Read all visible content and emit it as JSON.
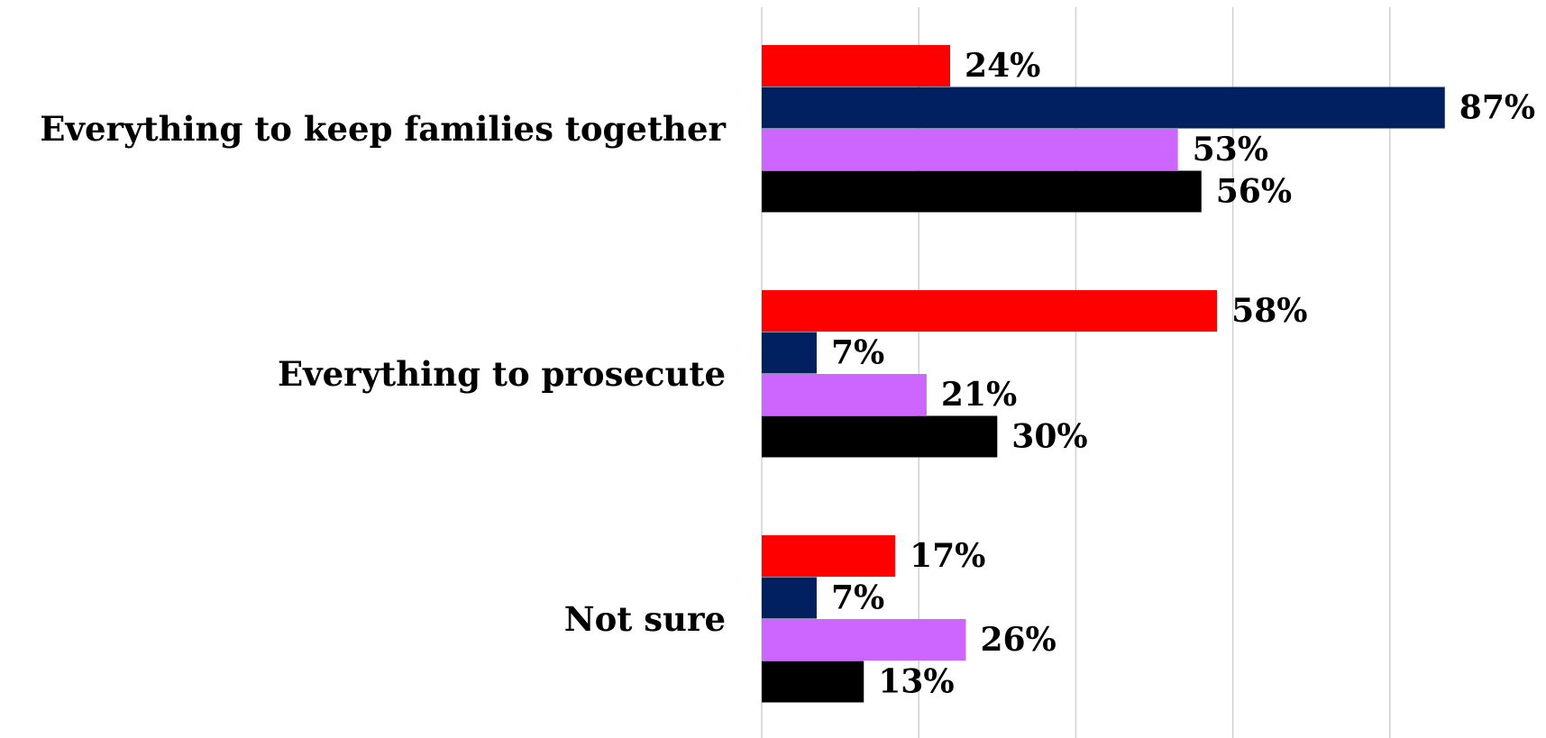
{
  "chart_data": {
    "type": "bar",
    "orientation": "horizontal",
    "categories": [
      "Everything to keep families together",
      "Everything to prosecute",
      "Not sure"
    ],
    "series": [
      {
        "color": "#ff0000",
        "values": [
          24,
          58,
          17
        ],
        "labels": [
          "24%",
          "58%",
          "17%"
        ]
      },
      {
        "color": "#002060",
        "values": [
          87,
          7,
          7
        ],
        "labels": [
          "87%",
          "7%",
          "7%"
        ]
      },
      {
        "color": "#cc66ff",
        "values": [
          53,
          21,
          26
        ],
        "labels": [
          "53%",
          "21%",
          "26%"
        ]
      },
      {
        "color": "#000000",
        "values": [
          56,
          30,
          13
        ],
        "labels": [
          "56%",
          "30%",
          "13%"
        ]
      }
    ],
    "xlim": [
      0,
      100
    ],
    "grid": true,
    "legend": "none"
  }
}
